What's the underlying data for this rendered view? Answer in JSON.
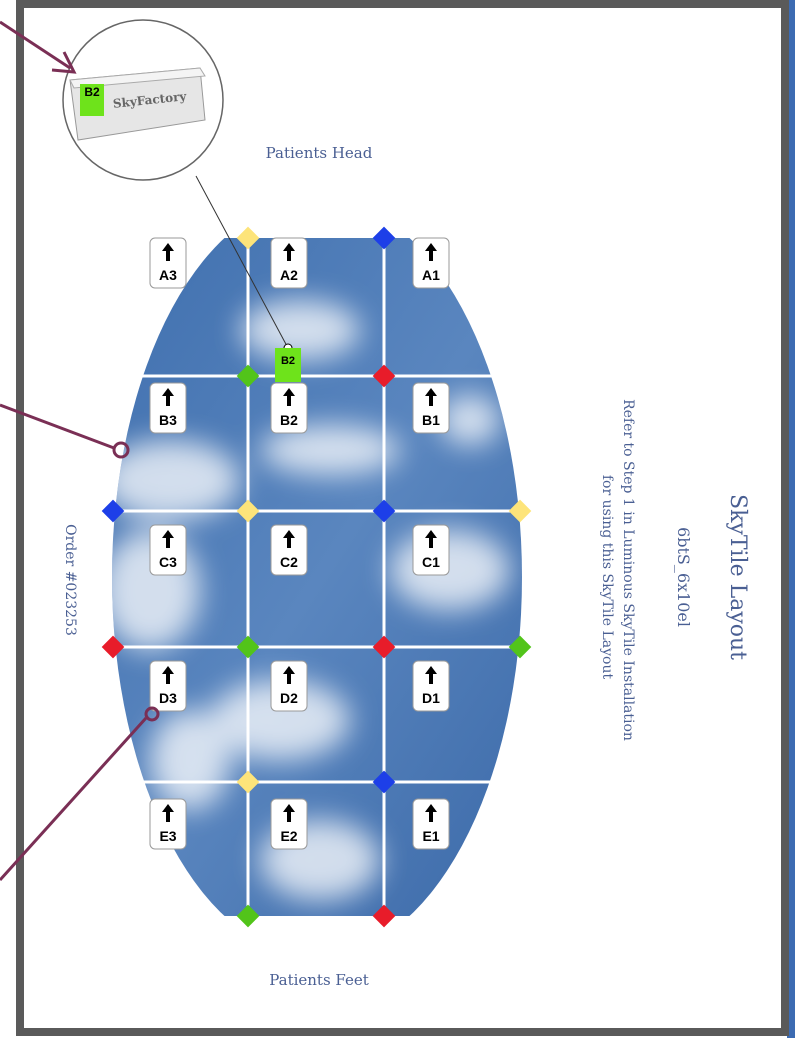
{
  "header": {
    "title": "SkyTile Layout",
    "code": "6btS_6x10el",
    "instruction_line1": "Refer to Step 1 in Luminous SkyTile Installation",
    "instruction_line2": "for using this SkyTile Layout"
  },
  "head_label": "Patients Head",
  "feet_label": "Patients Feet",
  "order": "Order #023253",
  "callout": {
    "tag": "B2",
    "brand": "SkyFactory"
  },
  "marker": "B2",
  "tiles": [
    [
      "A3",
      "A2",
      "A1"
    ],
    [
      "B3",
      "B2",
      "B1"
    ],
    [
      "C3",
      "C2",
      "C1"
    ],
    [
      "D3",
      "D2",
      "D1"
    ],
    [
      "E3",
      "E2",
      "E1"
    ]
  ]
}
